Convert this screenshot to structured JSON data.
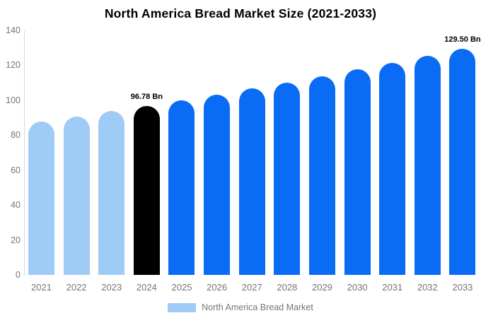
{
  "chart_data": {
    "type": "bar",
    "title": "North America Bread Market Size (2021-2033)",
    "categories": [
      "2021",
      "2022",
      "2023",
      "2024",
      "2025",
      "2026",
      "2027",
      "2028",
      "2029",
      "2030",
      "2031",
      "2032",
      "2033"
    ],
    "values": [
      87.84,
      90.73,
      93.71,
      96.78,
      99.97,
      103.26,
      106.65,
      110.17,
      113.8,
      117.55,
      121.42,
      125.42,
      129.5
    ],
    "bar_roles": [
      "past",
      "past",
      "past",
      "current",
      "forecast",
      "forecast",
      "forecast",
      "forecast",
      "forecast",
      "forecast",
      "forecast",
      "forecast",
      "forecast"
    ],
    "colors": {
      "past": "#9FCBF7",
      "current": "#000000",
      "forecast": "#0A6CF5",
      "axis_text": "#757575",
      "axis_line": "#D8D8D8"
    },
    "annotations": [
      {
        "category": "2024",
        "text": "96.78 Bn"
      },
      {
        "category": "2033",
        "text": "129.50 Bn"
      }
    ],
    "xlabel": "",
    "ylabel": "",
    "ylim": [
      0,
      140
    ],
    "yticks": [
      0,
      20,
      40,
      60,
      80,
      100,
      120,
      140
    ],
    "grid": false,
    "legend": {
      "label": "North America Bread Market",
      "position": "bottom",
      "swatch_role": "past"
    }
  }
}
